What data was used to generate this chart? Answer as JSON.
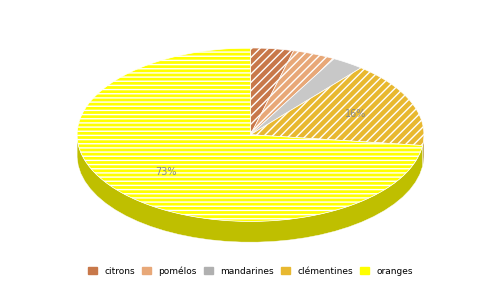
{
  "labels": [
    "citrons",
    "pomélos",
    "mandarines",
    "clémentines",
    "oranges"
  ],
  "values": [
    4,
    4,
    3,
    16,
    73
  ],
  "colors": [
    "#c8784a",
    "#e8a878",
    "#c8c8c8",
    "#e8b830",
    "#ffff00"
  ],
  "shadow_color": "#c8c87a",
  "startangle": 90,
  "background_color": "#ffffff",
  "legend_labels": [
    "citrons",
    "pomélos",
    "mandarines",
    "clémentines",
    "oranges"
  ],
  "legend_colors": [
    "#c8784a",
    "#e8a878",
    "#b0b0b0",
    "#e8b830",
    "#ffff00"
  ],
  "pct_labels": [
    "",
    "",
    "",
    "16%",
    "73%"
  ],
  "aspect_ratio": 0.5,
  "title_fontsize": 8
}
